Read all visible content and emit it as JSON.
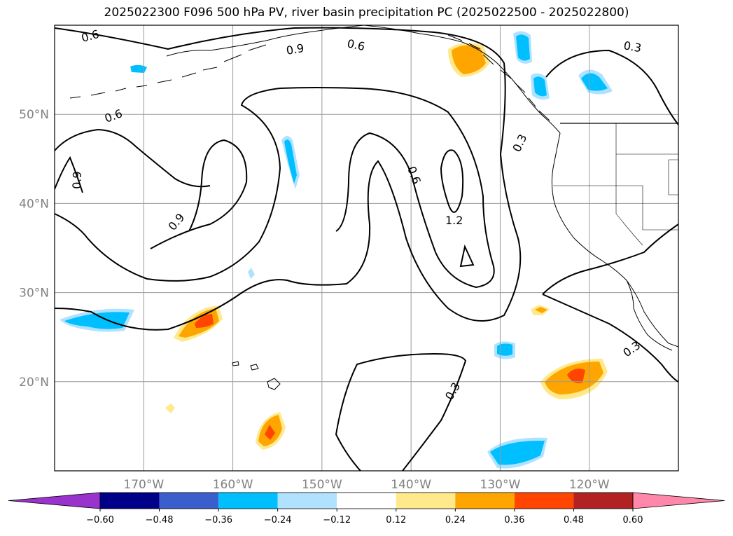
{
  "title": "2025022300 F096 500 hPa PV, river basin precipitation PC (2025022500 - 2025022800)",
  "map": {
    "lon_range": [
      -180,
      -110
    ],
    "lat_range": [
      10,
      60
    ],
    "lat_ticks": [
      {
        "value": 50,
        "label": "50°N"
      },
      {
        "value": 40,
        "label": "40°N"
      },
      {
        "value": 30,
        "label": "30°N"
      },
      {
        "value": 20,
        "label": "20°N"
      }
    ],
    "lon_ticks": [
      {
        "value": -170,
        "label": "170°W"
      },
      {
        "value": -160,
        "label": "160°W"
      },
      {
        "value": -150,
        "label": "150°W"
      },
      {
        "value": -140,
        "label": "140°W"
      },
      {
        "value": -130,
        "label": "130°W"
      },
      {
        "value": -120,
        "label": "120°W"
      }
    ],
    "grid": true,
    "contour_labels": [
      "0.6",
      "0.6",
      "0.3",
      "0.9",
      "0.6",
      "0.9",
      "0.9",
      "0.6",
      "1.2",
      "0.3",
      "0.3",
      "0.3"
    ]
  },
  "colorbar": {
    "extend": "both",
    "tick_labels": [
      "−0.60",
      "−0.48",
      "−0.36",
      "−0.24",
      "−0.12",
      "0.12",
      "0.24",
      "0.36",
      "0.48",
      "0.60"
    ],
    "colors": [
      "#9933cc",
      "#000088",
      "#3a5fcd",
      "#00bfff",
      "#b0e2ff",
      "#ffffff",
      "#ffe98a",
      "#ffa500",
      "#ff4500",
      "#b22222",
      "#ff88aa"
    ]
  }
}
